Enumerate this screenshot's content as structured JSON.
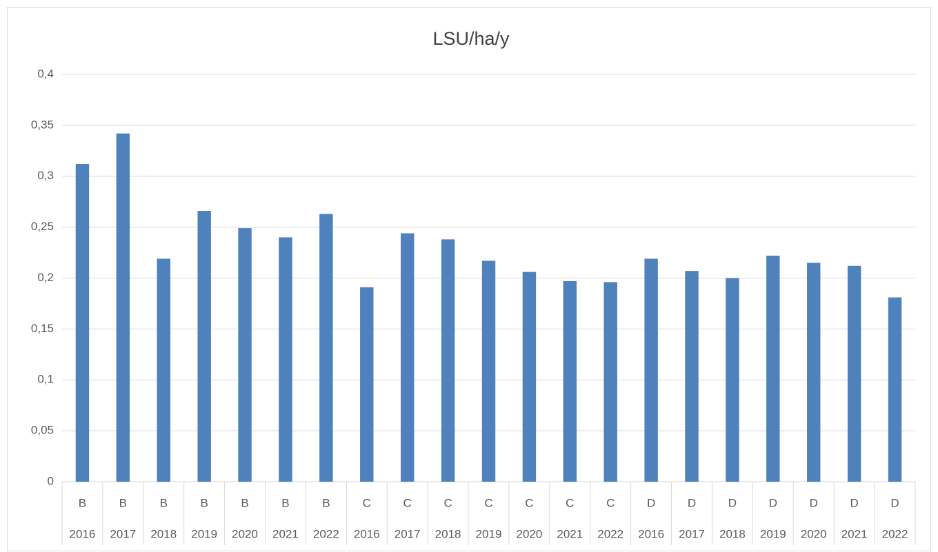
{
  "chart_data": {
    "type": "bar",
    "title": "LSU/ha/y",
    "groups": [
      "B",
      "B",
      "B",
      "B",
      "B",
      "B",
      "B",
      "C",
      "C",
      "C",
      "C",
      "C",
      "C",
      "C",
      "D",
      "D",
      "D",
      "D",
      "D",
      "D",
      "D"
    ],
    "categories": [
      "2016",
      "2017",
      "2018",
      "2019",
      "2020",
      "2021",
      "2022",
      "2016",
      "2017",
      "2018",
      "2019",
      "2020",
      "2021",
      "2022",
      "2016",
      "2017",
      "2018",
      "2019",
      "2020",
      "2021",
      "2022"
    ],
    "values": [
      0.312,
      0.342,
      0.219,
      0.266,
      0.249,
      0.24,
      0.263,
      0.191,
      0.244,
      0.238,
      0.217,
      0.206,
      0.197,
      0.196,
      0.219,
      0.207,
      0.2,
      0.222,
      0.215,
      0.212,
      0.181
    ],
    "color": "#4f81bd",
    "ylim": [
      0,
      0.4
    ],
    "yticks": [
      0,
      {
        "value": 0.05,
        "label": "0,05"
      },
      {
        "value": 0.1,
        "label": "0,1"
      },
      {
        "value": 0.15,
        "label": "0,15"
      },
      {
        "value": 0.2,
        "label": "0,2"
      },
      {
        "value": 0.25,
        "label": "0,25"
      },
      {
        "value": 0.3,
        "label": "0,3"
      },
      {
        "value": 0.35,
        "label": "0,35"
      },
      {
        "value": 0.4,
        "label": "0,4"
      }
    ],
    "grid": true
  }
}
